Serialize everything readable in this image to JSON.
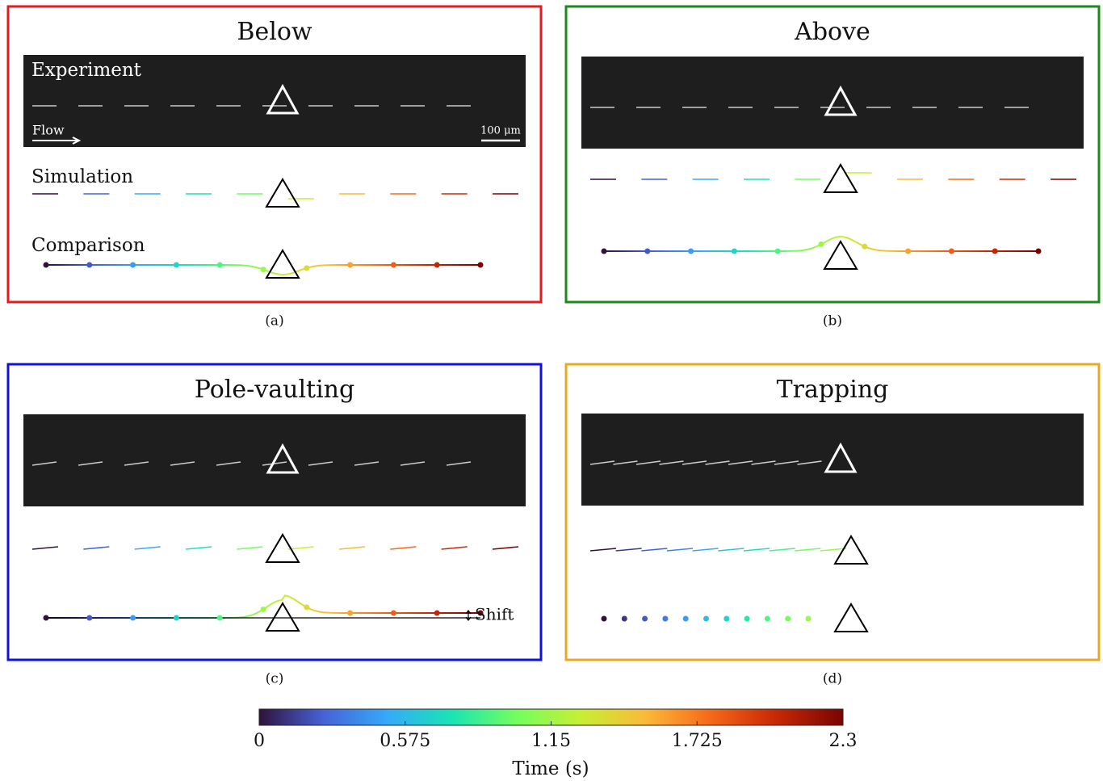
{
  "panels": [
    {
      "title": "Below",
      "caption": "(a)",
      "experiment": "Experiment",
      "simulation": "Simulation",
      "comparison": "Comparison",
      "flow": "Flow",
      "scale": "100 μm"
    },
    {
      "title": "Above",
      "caption": "(b)"
    },
    {
      "title": "Pole-vaulting",
      "caption": "(c)",
      "shift": "Shift"
    },
    {
      "title": "Trapping",
      "caption": "(d)"
    }
  ],
  "colorbar": {
    "label": "Time (s)",
    "lim": [
      0,
      2.3
    ],
    "ticks": [
      0,
      0.575,
      1.15,
      1.725,
      2.3
    ]
  }
}
